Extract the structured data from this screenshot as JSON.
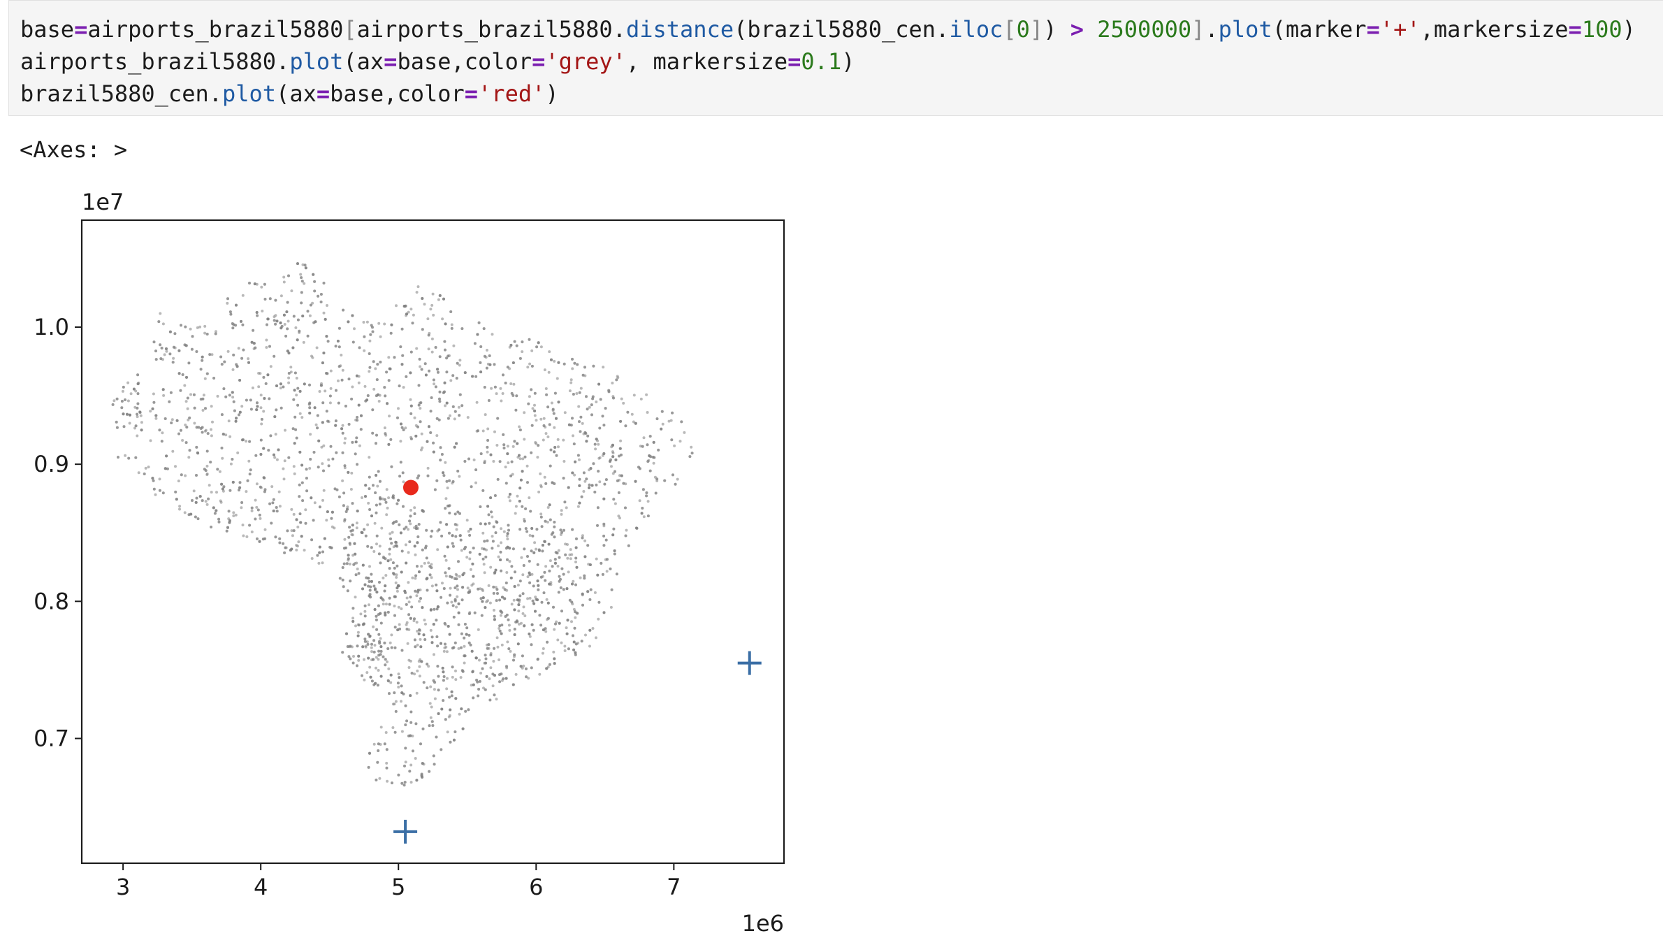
{
  "code_cell": {
    "lines": [
      [
        {
          "t": "base",
          "c": "name"
        },
        {
          "t": "=",
          "c": "op"
        },
        {
          "t": "airports_brazil5880",
          "c": "name"
        },
        {
          "t": "[",
          "c": "brack"
        },
        {
          "t": "airports_brazil5880.",
          "c": "name"
        },
        {
          "t": "distance",
          "c": "attr"
        },
        {
          "t": "(brazil5880_cen.",
          "c": "name"
        },
        {
          "t": "iloc",
          "c": "attr"
        },
        {
          "t": "[",
          "c": "brack"
        },
        {
          "t": "0",
          "c": "num"
        },
        {
          "t": "]",
          "c": "brack"
        },
        {
          "t": ") ",
          "c": "punct"
        },
        {
          "t": ">",
          "c": "op"
        },
        {
          "t": " ",
          "c": "punct"
        },
        {
          "t": "2500000",
          "c": "num"
        },
        {
          "t": "]",
          "c": "brack"
        },
        {
          "t": ".",
          "c": "punct"
        },
        {
          "t": "plot",
          "c": "attr"
        },
        {
          "t": "(marker",
          "c": "name"
        },
        {
          "t": "=",
          "c": "op"
        },
        {
          "t": "'+'",
          "c": "str"
        },
        {
          "t": ",markersize",
          "c": "name"
        },
        {
          "t": "=",
          "c": "op"
        },
        {
          "t": "100",
          "c": "num"
        },
        {
          "t": ")",
          "c": "punct"
        }
      ],
      [
        {
          "t": "airports_brazil5880.",
          "c": "name"
        },
        {
          "t": "plot",
          "c": "attr"
        },
        {
          "t": "(ax",
          "c": "name"
        },
        {
          "t": "=",
          "c": "op"
        },
        {
          "t": "base,color",
          "c": "name"
        },
        {
          "t": "=",
          "c": "op"
        },
        {
          "t": "'grey'",
          "c": "str"
        },
        {
          "t": ", markersize",
          "c": "name"
        },
        {
          "t": "=",
          "c": "op"
        },
        {
          "t": "0.1",
          "c": "num"
        },
        {
          "t": ")",
          "c": "punct"
        }
      ],
      [
        {
          "t": "brazil5880_cen.",
          "c": "name"
        },
        {
          "t": "plot",
          "c": "attr"
        },
        {
          "t": "(ax",
          "c": "name"
        },
        {
          "t": "=",
          "c": "op"
        },
        {
          "t": "base,color",
          "c": "name"
        },
        {
          "t": "=",
          "c": "op"
        },
        {
          "t": "'red'",
          "c": "str"
        },
        {
          "t": ")",
          "c": "punct"
        }
      ]
    ]
  },
  "output": {
    "text": "<Axes: >"
  },
  "chart_data": {
    "type": "scatter",
    "title": "",
    "xlabel": "",
    "ylabel": "",
    "x_offset_label": "1e6",
    "y_offset_label": "1e7",
    "xlim": [
      2.7,
      7.8
    ],
    "ylim": [
      6.09,
      10.78
    ],
    "x_unit_scale": 1000000,
    "y_unit_scale": 1000000,
    "xticks": [
      3,
      4,
      5,
      6,
      7
    ],
    "xtick_labels": [
      "3",
      "4",
      "5",
      "6",
      "7"
    ],
    "yticks": [
      7.0,
      8.0,
      9.0,
      10.0
    ],
    "ytick_labels": [
      "0.7",
      "0.8",
      "0.9",
      "1.0"
    ],
    "grid": false,
    "series": [
      {
        "marker": "+",
        "color": "#3a6ea5",
        "points": [
          [
            7.55,
            7.55
          ],
          [
            5.05,
            6.32
          ]
        ]
      },
      {
        "marker": "dot",
        "color": "#808080",
        "point_count": 4000,
        "shape_approximation": "Brazil outline"
      },
      {
        "marker": "circle",
        "color": "#e8291c",
        "points": [
          [
            5.09,
            8.83
          ]
        ]
      }
    ]
  }
}
